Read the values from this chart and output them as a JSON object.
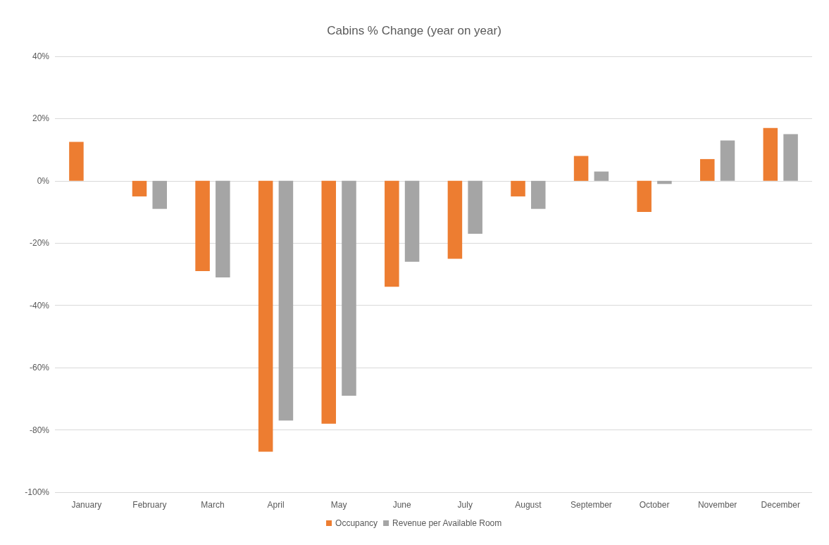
{
  "chart_data": {
    "type": "bar",
    "title": "Cabins % Change (year on year)",
    "categories": [
      "January",
      "February",
      "March",
      "April",
      "May",
      "June",
      "July",
      "August",
      "September",
      "October",
      "November",
      "December"
    ],
    "series": [
      {
        "name": "Occupancy",
        "color": "#ed7d31",
        "values": [
          12.5,
          -5,
          -29,
          -87,
          -78,
          -34,
          -25,
          -5,
          8,
          -10,
          7,
          17
        ]
      },
      {
        "name": "Revenue per Available Room",
        "color": "#a5a5a5",
        "values": [
          null,
          -9,
          -31,
          -77,
          -69,
          -26,
          -17,
          -9,
          3,
          -1,
          13,
          15
        ]
      }
    ],
    "ylim": [
      -100,
      40
    ],
    "yticks": [
      {
        "value": -100,
        "label": "-100%"
      },
      {
        "value": -80,
        "label": "-80%"
      },
      {
        "value": -60,
        "label": "-60%"
      },
      {
        "value": -40,
        "label": "-40%"
      },
      {
        "value": -20,
        "label": "-20%"
      },
      {
        "value": 0,
        "label": "0%"
      },
      {
        "value": 20,
        "label": "20%"
      },
      {
        "value": 40,
        "label": "40%"
      }
    ],
    "grid": "y",
    "legend": "bottom"
  }
}
